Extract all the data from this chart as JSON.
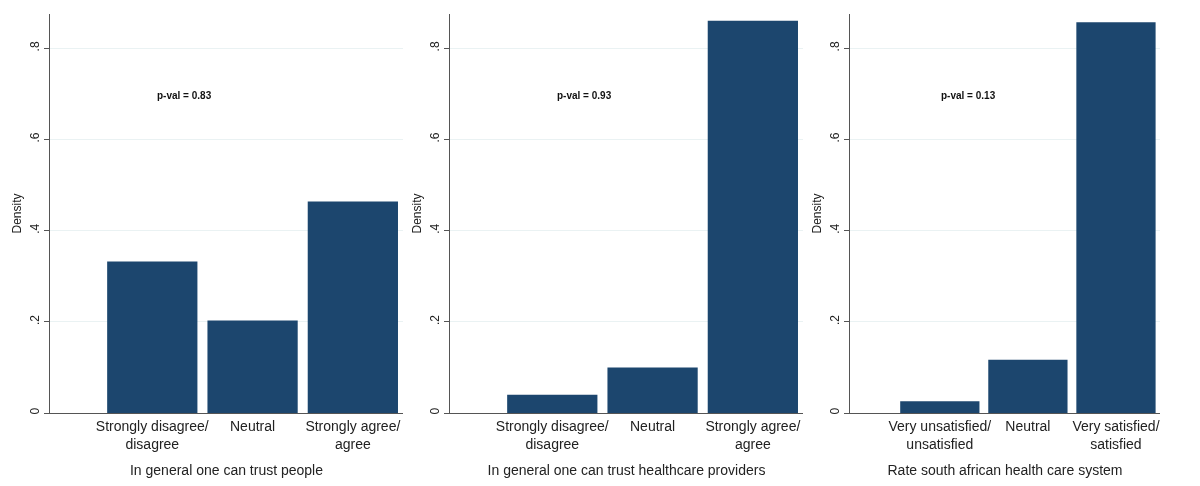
{
  "chart_data": [
    {
      "type": "bar",
      "xlabel": "In general one can trust people",
      "ylabel": "Density",
      "categories": [
        "Strongly disagree/ disagree",
        "Neutral",
        "Strongly agree/ agree"
      ],
      "values": [
        0.332,
        0.203,
        0.464
      ],
      "color": "#1c466e",
      "ylim": [
        0,
        0.875
      ],
      "yticks": [
        0,
        {
          "value": 0.2,
          "label": ".2"
        },
        {
          "value": 0.4,
          "label": ".4"
        },
        {
          "value": 0.6,
          "label": ".6"
        },
        {
          "value": 0.8,
          "label": ".8"
        }
      ],
      "grid": "y",
      "annotations": [
        "p-val = 0.83"
      ]
    },
    {
      "type": "bar",
      "xlabel": "In general one can trust healthcare providers",
      "ylabel": "Density",
      "categories": [
        "Strongly disagree/ disagree",
        "Neutral",
        "Strongly agree/ agree"
      ],
      "values": [
        0.04,
        0.1,
        0.86
      ],
      "color": "#1c466e",
      "ylim": [
        0,
        0.875
      ],
      "yticks": [
        0,
        {
          "value": 0.2,
          "label": ".2"
        },
        {
          "value": 0.4,
          "label": ".4"
        },
        {
          "value": 0.6,
          "label": ".6"
        },
        {
          "value": 0.8,
          "label": ".8"
        }
      ],
      "grid": "y",
      "annotations": [
        "p-val = 0.93"
      ]
    },
    {
      "type": "bar",
      "xlabel": "Rate south african health care system",
      "ylabel": "Density",
      "categories": [
        "Very unsatisfied/ unsatisfied",
        "Neutral",
        "Very satisfied/ satisfied"
      ],
      "values": [
        0.026,
        0.117,
        0.857
      ],
      "color": "#1c466e",
      "ylim": [
        0,
        0.875
      ],
      "yticks": [
        0,
        {
          "value": 0.2,
          "label": ".2"
        },
        {
          "value": 0.4,
          "label": ".4"
        },
        {
          "value": 0.6,
          "label": ".6"
        },
        {
          "value": 0.8,
          "label": ".8"
        }
      ],
      "grid": "y",
      "annotations": [
        "p-val = 0.13"
      ]
    }
  ]
}
